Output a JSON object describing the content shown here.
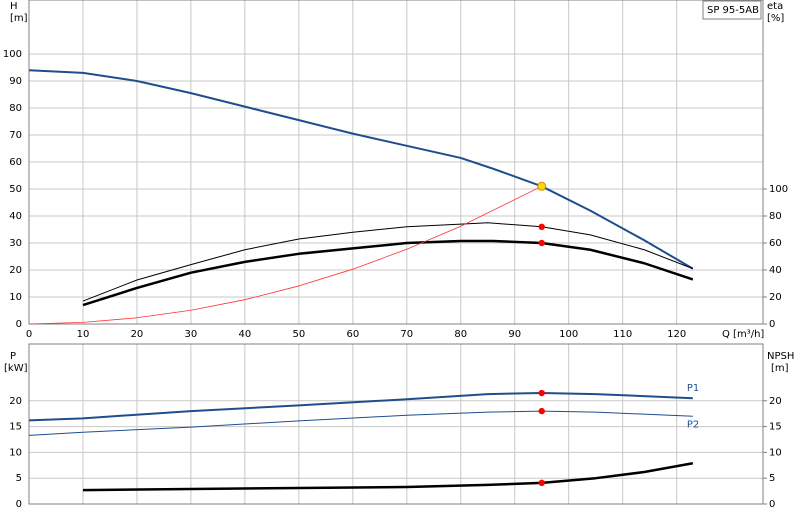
{
  "chart_data": [
    {
      "type": "line",
      "title": "SP 95-5AB",
      "y_label": "H",
      "y_unit": "[m]",
      "y2_label": "eta",
      "y2_unit": "[%]",
      "x_label": "Q [m³/h]",
      "xlim": [
        0,
        136
      ],
      "xticks": [
        0,
        10,
        20,
        30,
        40,
        50,
        60,
        70,
        80,
        90,
        100,
        110,
        120
      ],
      "ylim": [
        0,
        120
      ],
      "yticks": [
        0,
        10,
        20,
        30,
        40,
        50,
        60,
        70,
        80,
        90,
        100
      ],
      "y2lim": [
        0,
        240
      ],
      "y2ticks": [
        0,
        20,
        40,
        60,
        80,
        100
      ],
      "grid": true,
      "series": [
        {
          "color": "#1f4e8c",
          "width": 2,
          "x": [
            0,
            10,
            20,
            30,
            40,
            50,
            60,
            70,
            80,
            86,
            95,
            104,
            114,
            123
          ],
          "values": [
            94,
            93,
            90,
            85.5,
            80.5,
            75.5,
            70.5,
            66,
            61.5,
            57.5,
            51,
            42,
            31,
            20.5
          ]
        },
        {
          "color": "#000000",
          "width": 1,
          "axis": "y2",
          "x": [
            10,
            20,
            30,
            40,
            50,
            60,
            70,
            80,
            85,
            95,
            104,
            114,
            123
          ],
          "values": [
            17,
            32.6,
            44,
            55,
            63,
            68,
            72,
            74,
            75,
            72,
            66,
            55,
            41
          ]
        },
        {
          "color": "#000000",
          "width": 2.5,
          "axis": "y2",
          "x": [
            10,
            20,
            30,
            40,
            50,
            60,
            70,
            80,
            86,
            95,
            104,
            114,
            123
          ],
          "values": [
            14,
            26.7,
            38,
            46,
            52,
            56,
            60,
            61.5,
            61.5,
            60,
            55,
            45,
            33
          ]
        },
        {
          "color": "#ff3030",
          "width": 0.8,
          "x": [
            0,
            10,
            20,
            30,
            40,
            50,
            60,
            70,
            80,
            95
          ],
          "values": [
            0,
            0.6,
            2.3,
            5.1,
            9,
            14.1,
            20.3,
            27.7,
            36.2,
            51
          ]
        }
      ],
      "points": [
        {
          "x": 95,
          "y": 51,
          "color": "#ffd700"
        },
        {
          "x": 95,
          "y": 72,
          "axis": "y2",
          "color": "#ff0000"
        },
        {
          "x": 95,
          "y": 60,
          "axis": "y2",
          "color": "#ff0000"
        }
      ]
    },
    {
      "type": "line",
      "y_label": "P",
      "y_unit": "[kW]",
      "y2_label": "NPSH",
      "y2_unit": "[m]",
      "xlim": [
        0,
        136
      ],
      "xticks": [
        0,
        10,
        20,
        30,
        40,
        50,
        60,
        70,
        80,
        90,
        100,
        110,
        120
      ],
      "ylim": [
        0,
        31
      ],
      "yticks": [
        0,
        5,
        10,
        15,
        20
      ],
      "y2lim": [
        0,
        31
      ],
      "y2ticks": [
        0,
        5,
        10,
        15,
        20
      ],
      "grid": true,
      "series": [
        {
          "name": "P1",
          "color": "#1f4e8c",
          "width": 2,
          "x": [
            0,
            10,
            30,
            50,
            70,
            85,
            95,
            105,
            123
          ],
          "values": [
            16.2,
            16.6,
            18,
            19.1,
            20.3,
            21.3,
            21.5,
            21.3,
            20.5
          ]
        },
        {
          "name": "P2",
          "color": "#1f4e8c",
          "width": 1,
          "x": [
            0,
            10,
            30,
            50,
            70,
            85,
            95,
            105,
            123
          ],
          "values": [
            13.3,
            13.9,
            14.9,
            16.1,
            17.2,
            17.8,
            18,
            17.8,
            17
          ]
        },
        {
          "color": "#000000",
          "width": 2.5,
          "axis": "y2",
          "x": [
            10,
            30,
            50,
            70,
            85,
            95,
            105,
            114,
            123
          ],
          "values": [
            2.7,
            2.9,
            3.1,
            3.3,
            3.7,
            4.1,
            5,
            6.2,
            7.9
          ]
        }
      ],
      "points": [
        {
          "x": 95,
          "y": 21.5,
          "color": "#ff0000"
        },
        {
          "x": 95,
          "y": 18,
          "color": "#ff0000"
        },
        {
          "x": 95,
          "y": 4.1,
          "axis": "y2",
          "color": "#ff0000"
        }
      ]
    }
  ]
}
